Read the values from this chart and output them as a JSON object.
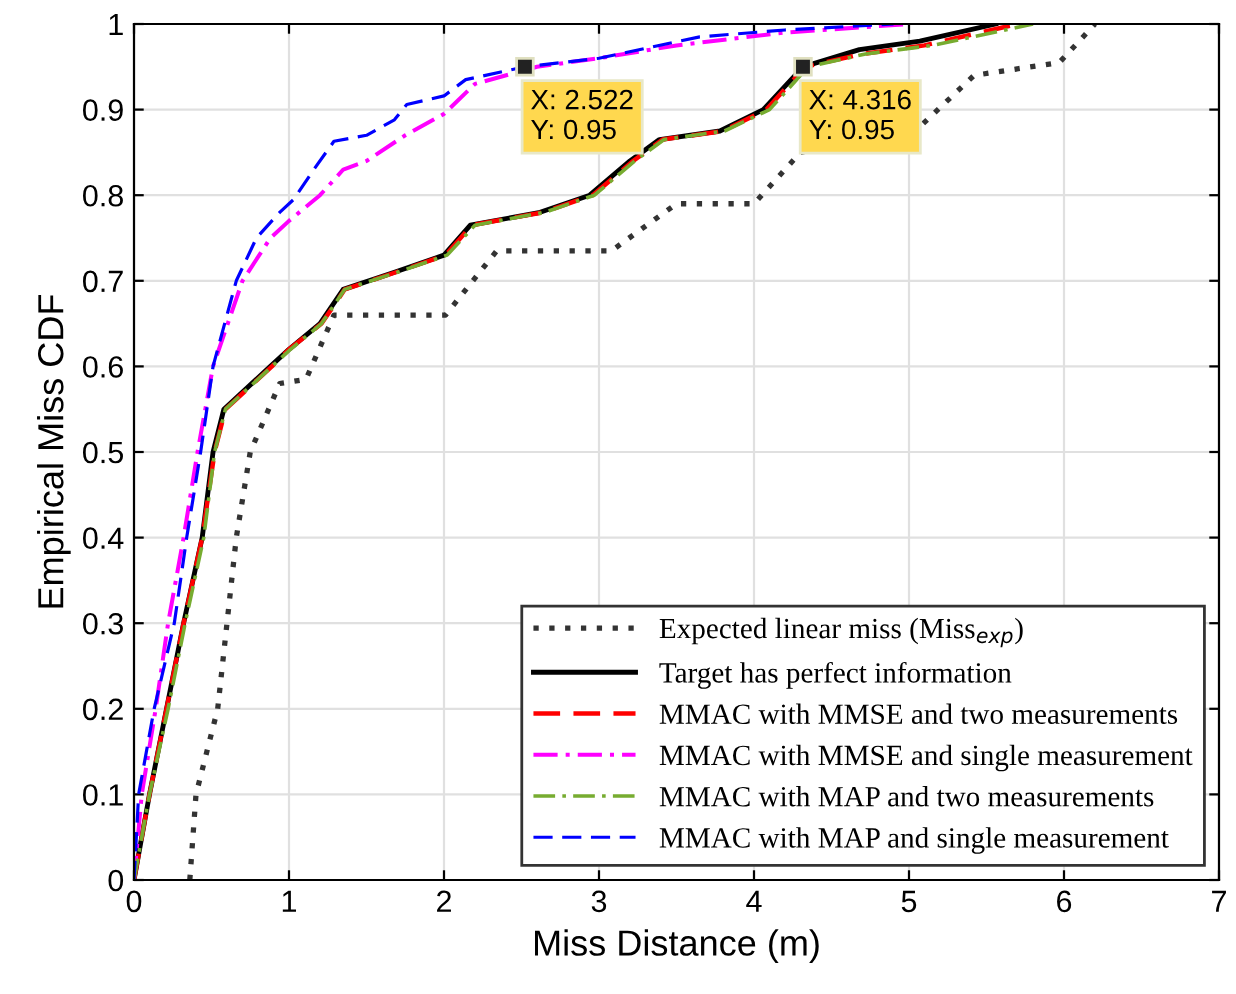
{
  "chart_data": {
    "type": "line",
    "xlabel": "Miss Distance (m)",
    "ylabel": "Empirical Miss CDF",
    "xlim": [
      0,
      7
    ],
    "ylim": [
      0,
      1
    ],
    "xticks": [
      0,
      1,
      2,
      3,
      4,
      5,
      6,
      7
    ],
    "yticks": [
      0,
      0.1,
      0.2,
      0.3,
      0.4,
      0.5,
      0.6,
      0.7,
      0.8,
      0.9,
      1
    ],
    "grid": true,
    "legend": "bottom right",
    "annotations": [
      {
        "text": "X: 2.522\nY: 0.95",
        "x": 2.522,
        "y": 0.95
      },
      {
        "text": "X: 4.316\nY: 0.95",
        "x": 4.316,
        "y": 0.95
      }
    ],
    "series": [
      {
        "name": "Expected linear miss (Miss$_{exp}$)",
        "color": "#333333",
        "line_style": "dotted",
        "x": [
          0.36,
          0.4,
          0.54,
          0.6,
          0.66,
          0.75,
          0.94,
          1.11,
          1.29,
          2.01,
          2.34,
          3.08,
          3.5,
          4.0,
          4.3,
          5.07,
          5.42,
          5.97,
          6.2
        ],
        "values": [
          0,
          0.1,
          0.2,
          0.3,
          0.4,
          0.5,
          0.58,
          0.585,
          0.66,
          0.66,
          0.735,
          0.735,
          0.79,
          0.79,
          0.85,
          0.88,
          0.94,
          0.955,
          1
        ]
      },
      {
        "name": "Target has perfect information",
        "color": "#000000",
        "line_style": "solid",
        "x": [
          0,
          0.1,
          0.21,
          0.32,
          0.44,
          0.51,
          0.58,
          0.88,
          1.0,
          1.2,
          1.35,
          1.68,
          2.0,
          2.17,
          2.62,
          2.94,
          3.2,
          3.39,
          3.78,
          4.06,
          4.316,
          4.68,
          5.07,
          5.56
        ],
        "values": [
          0,
          0.1,
          0.2,
          0.3,
          0.4,
          0.5,
          0.55,
          0.6,
          0.62,
          0.65,
          0.69,
          0.71,
          0.73,
          0.765,
          0.78,
          0.8,
          0.84,
          0.865,
          0.875,
          0.9,
          0.95,
          0.97,
          0.98,
          1
        ]
      },
      {
        "name": "MMAC with MMSE and two measurements",
        "color": "#ff0000",
        "line_style": "dashed",
        "x": [
          0,
          0.1,
          0.21,
          0.32,
          0.44,
          0.52,
          0.59,
          0.89,
          1.0,
          1.21,
          1.36,
          1.69,
          2.01,
          2.18,
          2.64,
          2.96,
          3.22,
          3.41,
          3.8,
          4.08,
          4.33,
          4.7,
          5.1,
          5.7
        ],
        "values": [
          0,
          0.1,
          0.2,
          0.3,
          0.4,
          0.5,
          0.55,
          0.6,
          0.62,
          0.65,
          0.69,
          0.71,
          0.73,
          0.765,
          0.78,
          0.8,
          0.84,
          0.865,
          0.875,
          0.9,
          0.95,
          0.965,
          0.975,
          1
        ]
      },
      {
        "name": "MMAC with MMSE and single measurement",
        "color": "#ff00ff",
        "line_style": "dashdot",
        "x": [
          0,
          0.05,
          0.14,
          0.22,
          0.32,
          0.41,
          0.51,
          0.7,
          0.88,
          1.0,
          1.2,
          1.35,
          1.5,
          1.75,
          2.0,
          2.2,
          2.6,
          3.0,
          3.5,
          4.2,
          5.0
        ],
        "values": [
          0,
          0.1,
          0.2,
          0.3,
          0.4,
          0.5,
          0.6,
          0.7,
          0.75,
          0.77,
          0.8,
          0.83,
          0.84,
          0.87,
          0.895,
          0.93,
          0.95,
          0.96,
          0.975,
          0.99,
          1
        ]
      },
      {
        "name": "MMAC with MAP and two measurements",
        "color": "#77ac30",
        "line_style": "dashdot",
        "x": [
          0,
          0.1,
          0.22,
          0.33,
          0.45,
          0.52,
          0.59,
          0.89,
          1.01,
          1.21,
          1.36,
          1.7,
          2.02,
          2.2,
          2.65,
          2.97,
          3.23,
          3.42,
          3.81,
          4.1,
          4.35,
          4.72,
          5.15,
          5.8
        ],
        "values": [
          0,
          0.1,
          0.2,
          0.3,
          0.4,
          0.5,
          0.55,
          0.6,
          0.62,
          0.65,
          0.69,
          0.71,
          0.73,
          0.765,
          0.78,
          0.8,
          0.84,
          0.865,
          0.875,
          0.9,
          0.95,
          0.965,
          0.975,
          1
        ]
      },
      {
        "name": "MMAC with MAP and single measurement",
        "color": "#0000ff",
        "line_style": "dashed",
        "x": [
          0,
          0.03,
          0.13,
          0.26,
          0.34,
          0.43,
          0.51,
          0.66,
          0.79,
          0.94,
          1.03,
          1.16,
          1.29,
          1.5,
          1.68,
          1.76,
          2.0,
          2.14,
          2.522,
          3.0,
          3.65,
          4.2,
          4.9
        ],
        "values": [
          0,
          0.1,
          0.2,
          0.3,
          0.4,
          0.5,
          0.6,
          0.7,
          0.75,
          0.78,
          0.795,
          0.83,
          0.863,
          0.87,
          0.888,
          0.906,
          0.916,
          0.935,
          0.95,
          0.96,
          0.985,
          0.993,
          1
        ]
      }
    ]
  }
}
